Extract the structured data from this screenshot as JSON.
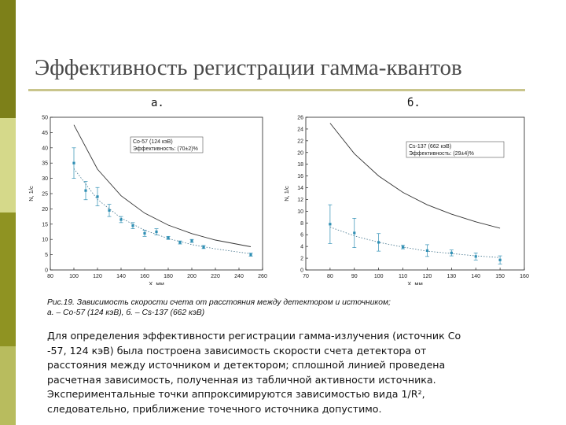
{
  "title": "Эффективность регистрации гамма-квантов",
  "colors": {
    "stripe_dark": "#7d8019",
    "stripe_light": "#d5d98a",
    "rule": "#c9c58c",
    "points": "#2f8fb4",
    "fit_line": "#333333"
  },
  "panels": {
    "a_label": "а.",
    "b_label": "б."
  },
  "chart_data": [
    {
      "type": "scatter",
      "panel": "а.",
      "xlabel": "X, мм",
      "ylabel": "N, 1/c",
      "xlim": [
        80,
        260
      ],
      "ylim": [
        0,
        50
      ],
      "xticks": [
        80,
        100,
        120,
        140,
        160,
        180,
        200,
        220,
        240,
        260
      ],
      "yticks": [
        0,
        5,
        10,
        15,
        20,
        25,
        30,
        35,
        40,
        45,
        50
      ],
      "legend": [
        "Co-57 (124 кэВ)",
        "Эффективность: (70±2)%"
      ],
      "legend_position": "top-right",
      "series": [
        {
          "name": "Co-57 (124 кэВ)",
          "x": [
            100,
            110,
            120,
            130,
            140,
            150,
            160,
            170,
            180,
            190,
            200,
            210,
            250
          ],
          "y": [
            35,
            26,
            24,
            19.5,
            16.5,
            14.5,
            12,
            12.5,
            10.5,
            9,
            9.5,
            7.5,
            5
          ],
          "err": [
            5,
            3,
            3,
            2,
            1,
            1,
            1,
            1,
            0.5,
            0.5,
            0.5,
            0.5,
            0.5
          ]
        }
      ],
      "curve_solid": {
        "x": [
          100,
          120,
          140,
          160,
          180,
          200,
          220,
          250
        ],
        "y": [
          47.5,
          33,
          24.3,
          18.6,
          14.7,
          11.9,
          9.8,
          7.6
        ]
      },
      "curve_dotted": {
        "x": [
          100,
          120,
          140,
          160,
          180,
          200,
          220,
          250
        ],
        "y": [
          33.2,
          23.1,
          17,
          13,
          10.3,
          8.3,
          6.9,
          5.3
        ]
      }
    },
    {
      "type": "scatter",
      "panel": "б.",
      "xlabel": "X, мм",
      "ylabel": "N, 1/c",
      "xlim": [
        70,
        160
      ],
      "ylim": [
        0,
        26
      ],
      "xticks": [
        70,
        80,
        90,
        100,
        110,
        120,
        130,
        140,
        150,
        160
      ],
      "yticks": [
        0,
        2,
        4,
        6,
        8,
        10,
        12,
        14,
        16,
        18,
        20,
        22,
        24,
        26
      ],
      "legend": [
        "Cs-137 (662 кэВ)",
        "Эффективность: (29±4)%"
      ],
      "legend_position": "top-right",
      "series": [
        {
          "name": "Cs-137 (662 кэВ)",
          "x": [
            80,
            90,
            100,
            110,
            120,
            130,
            140,
            150
          ],
          "y": [
            7.8,
            6.3,
            4.7,
            3.9,
            3.3,
            2.9,
            2.3,
            1.7
          ],
          "err": [
            3.3,
            2.5,
            1.5,
            0.3,
            1,
            0.5,
            0.6,
            0.7
          ]
        }
      ],
      "curve_solid": {
        "x": [
          80,
          90,
          100,
          110,
          120,
          130,
          140,
          150
        ],
        "y": [
          25,
          19.8,
          16,
          13.2,
          11.1,
          9.5,
          8.2,
          7.1
        ]
      },
      "curve_dotted": {
        "x": [
          80,
          90,
          100,
          110,
          120,
          130,
          140,
          150
        ],
        "y": [
          7.3,
          5.8,
          4.7,
          3.9,
          3.2,
          2.8,
          2.4,
          2.1
        ]
      }
    }
  ],
  "caption": [
    "Рис.19. Зависимость скорости счета от расстояния между детектором и источником;",
    "а. – Co-57 (124 кэВ), б. – Cs-137 (662 кэВ)"
  ],
  "body_lines": [
    "Для определения эффективности регистрации гамма-излучения (источник Co",
    "-57, 124 кэВ) была построена зависимость скорости счета детектора от",
    "расстояния между источником и детектором; сплошной линией проведена",
    "расчетная зависимость, полученная из табличной активности источника.",
    "Экспериментальные точки аппроксимируются зависимостью вида 1/R²,",
    "следовательно, приближение точечного источника допустимо."
  ]
}
